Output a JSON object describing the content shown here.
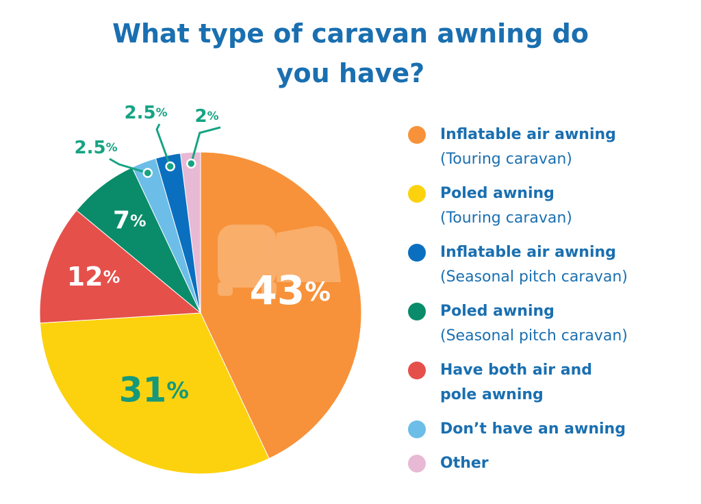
{
  "chart_data": {
    "type": "pie",
    "title": "What type of caravan awning do you have?",
    "categories": [
      "Inflatable air awning",
      "Poled awning",
      "Have both air and pole awning",
      "Poled awning",
      "Don’t have an awning",
      "Inflatable air awning",
      "Other"
    ],
    "category_notes": [
      "(Touring caravan)",
      "(Touring caravan)",
      null,
      "(Seasonal pitch caravan)",
      null,
      "(Seasonal pitch caravan)",
      null
    ],
    "values": [
      43,
      31,
      12,
      7,
      2.5,
      2.5,
      2
    ],
    "value_labels": [
      "43%",
      "31%",
      "12%",
      "7%",
      "2.5%",
      "2.5%",
      "2%"
    ],
    "colors": [
      "#f7923a",
      "#fcd20f",
      "#e5504b",
      "#0a8c6a",
      "#6cbde8",
      "#0b6fc0",
      "#e8b9d4"
    ],
    "label_colors": [
      "#ffffff",
      "#16997a",
      "#ffffff",
      "#ffffff",
      "#16a383",
      "#16a383",
      "#16a383"
    ],
    "legend_order": [
      0,
      1,
      5,
      3,
      2,
      4,
      6
    ],
    "legend": "right"
  }
}
